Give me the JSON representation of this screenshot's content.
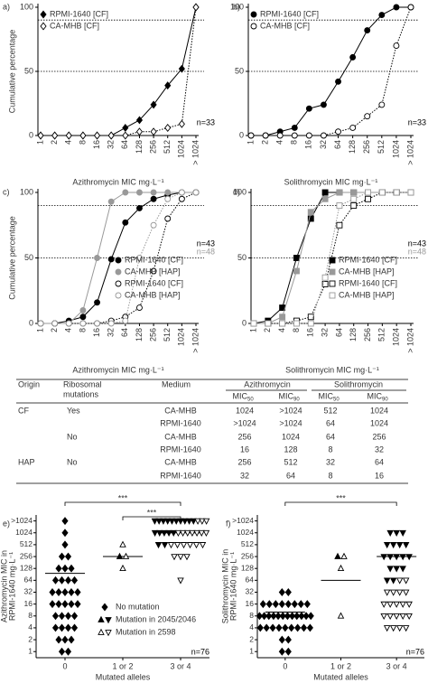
{
  "chart_data": [
    {
      "type": "line",
      "label": "a)",
      "marker": "diamond",
      "categories": [
        "1",
        "2",
        "4",
        "8",
        "16",
        "32",
        "64",
        "128",
        "256",
        "512",
        "1024",
        "> 1024"
      ],
      "ylim": [
        0,
        100
      ],
      "yticks": [
        0,
        50,
        100
      ],
      "reference_lines": [
        50,
        90
      ],
      "x_label": "Azithromycin MIC mg·L⁻¹",
      "y_label": "Cumulative percentage",
      "legend": "upper left",
      "annotations": [
        {
          "text": "n=33",
          "color": "#000000"
        }
      ],
      "series": [
        {
          "name": "RPMI-1640 [CF]",
          "color": "#000000",
          "filled": true,
          "dashed": false,
          "values": [
            0,
            0,
            0,
            0,
            0,
            0,
            6,
            12,
            24,
            39,
            52,
            100
          ]
        },
        {
          "name": "CA-MHB [CF]",
          "color": "#000000",
          "filled": false,
          "dashed": true,
          "values": [
            0,
            0,
            0,
            0,
            0,
            0,
            0,
            3,
            3,
            6,
            9,
            100
          ]
        }
      ]
    },
    {
      "type": "line",
      "label": "b)",
      "marker": "circle",
      "categories": [
        "1",
        "2",
        "4",
        "8",
        "16",
        "32",
        "64",
        "128",
        "256",
        "512",
        "1024",
        "> 1024"
      ],
      "ylim": [
        0,
        100
      ],
      "yticks": [
        0,
        50,
        100
      ],
      "reference_lines": [
        50,
        90
      ],
      "x_label": "Solithromycin MIC mg·L⁻¹",
      "legend": "upper left",
      "annotations": [
        {
          "text": "n=33",
          "color": "#000000"
        }
      ],
      "series": [
        {
          "name": "RPMI-1640 [CF]",
          "color": "#000000",
          "filled": true,
          "dashed": false,
          "values": [
            0,
            0,
            3,
            6,
            21,
            24,
            42,
            61,
            82,
            94,
            100,
            100
          ]
        },
        {
          "name": "CA-MHB [CF]",
          "color": "#000000",
          "filled": false,
          "dashed": true,
          "values": [
            0,
            0,
            0,
            0,
            0,
            0,
            3,
            6,
            15,
            24,
            70,
            100
          ]
        }
      ]
    },
    {
      "type": "line",
      "label": "c)",
      "marker": "circle",
      "categories": [
        "1",
        "2",
        "4",
        "8",
        "16",
        "32",
        "64",
        "128",
        "256",
        "512",
        "1024",
        "> 1024"
      ],
      "ylim": [
        0,
        100
      ],
      "yticks": [
        0,
        50,
        100
      ],
      "reference_lines": [
        50,
        90
      ],
      "x_label": "Azithromycin MIC mg·L⁻¹",
      "y_label": "Cumulative percentage",
      "legend": "lower right",
      "annotations": [
        {
          "text": "n=43",
          "color": "#000000"
        },
        {
          "text": "n=48",
          "color": "#999999"
        }
      ],
      "series": [
        {
          "name": "RPMI-1640 [CF]",
          "color": "#000000",
          "filled": true,
          "dashed": false,
          "values": [
            0,
            0,
            2,
            5,
            16,
            49,
            77,
            88,
            95,
            98,
            100,
            100
          ]
        },
        {
          "name": "CA-MHB [HAP]",
          "color": "#999999",
          "filled": true,
          "dashed": false,
          "values": [
            0,
            0,
            0,
            10,
            50,
            93,
            100,
            100,
            100,
            100,
            100,
            100
          ]
        },
        {
          "name": "RPMI-1640 [CF]",
          "color": "#000000",
          "filled": false,
          "dashed": true,
          "values": [
            0,
            0,
            0,
            0,
            0,
            2,
            5,
            12,
            40,
            80,
            95,
            100
          ]
        },
        {
          "name": "CA-MHB [HAP]",
          "color": "#999999",
          "filled": false,
          "dashed": true,
          "values": [
            0,
            0,
            0,
            0,
            0,
            0,
            2,
            50,
            75,
            95,
            100,
            100
          ]
        }
      ]
    },
    {
      "type": "line",
      "label": "d)",
      "marker": "square",
      "categories": [
        "1",
        "2",
        "4",
        "8",
        "16",
        "32",
        "64",
        "128",
        "256",
        "512",
        "1024",
        "> 1024"
      ],
      "ylim": [
        0,
        100
      ],
      "yticks": [
        0,
        50,
        100
      ],
      "reference_lines": [
        50,
        90
      ],
      "x_label": "Solithromycin MIC mg·L⁻¹",
      "legend": "lower right",
      "annotations": [
        {
          "text": "n=43",
          "color": "#000000"
        },
        {
          "text": "n=48",
          "color": "#999999"
        }
      ],
      "series": [
        {
          "name": "RPMI-1640 [CF]",
          "color": "#000000",
          "filled": true,
          "dashed": false,
          "values": [
            0,
            2,
            12,
            50,
            80,
            100,
            100,
            100,
            100,
            100,
            100,
            100
          ]
        },
        {
          "name": "CA-MHB [HAP]",
          "color": "#999999",
          "filled": true,
          "dashed": false,
          "values": [
            0,
            0,
            5,
            40,
            85,
            95,
            100,
            100,
            100,
            100,
            100,
            100
          ]
        },
        {
          "name": "RPMI-1640 [CF]",
          "color": "#000000",
          "filled": false,
          "dashed": true,
          "values": [
            0,
            0,
            0,
            2,
            5,
            30,
            75,
            90,
            95,
            100,
            100,
            100
          ]
        },
        {
          "name": "CA-MHB [HAP]",
          "color": "#999999",
          "filled": false,
          "dashed": true,
          "values": [
            0,
            0,
            0,
            0,
            0,
            35,
            90,
            95,
            100,
            100,
            100,
            100
          ]
        }
      ]
    },
    {
      "type": "dot",
      "label": "e)",
      "categories": [
        "0",
        "1 or 2",
        "3 or 4"
      ],
      "log_base": 2,
      "ylim": [
        0.7,
        2900
      ],
      "yticks": [
        1,
        2,
        4,
        8,
        16,
        32,
        64,
        128,
        256,
        512,
        1024,
        {
          "value": 2048,
          "label": ">1024"
        }
      ],
      "x_label": "Mutated alleles",
      "y_label": [
        "Azithromycin MIC in",
        "RPMI-1640 mg·L⁻¹"
      ],
      "legend": "lower left",
      "triangle_direction": [
        "down",
        "up",
        "down"
      ],
      "medians": [
        96,
        256,
        1024
      ],
      "brackets": [
        {
          "from": "0",
          "to": "3 or 4",
          "label": "***"
        },
        {
          "from": "1 or 2",
          "to": "3 or 4",
          "label": "***"
        }
      ],
      "annotations": [
        {
          "text": "n=76",
          "color": "#000000"
        }
      ],
      "series": [
        {
          "name": "No mutation",
          "marker": "diamond",
          "color": "#000000",
          "filled": true,
          "values": [
            [
              1,
              1,
              2,
              2,
              2,
              4,
              4,
              4,
              4,
              8,
              8,
              8,
              8,
              16,
              16,
              16,
              16,
              16,
              32,
              32,
              32,
              32,
              32,
              64,
              64,
              64,
              64,
              128,
              128,
              128,
              256,
              256,
              512,
              1024,
              2048
            ],
            [],
            []
          ]
        },
        {
          "name": "Mutation in 2045/2046",
          "marker": "triangle",
          "color": "#000000",
          "filled": true,
          "values": [
            [],
            [
              256
            ],
            [
              2048,
              2048,
              2048,
              2048,
              2048,
              2048,
              2048,
              2048,
              2048,
              2048,
              1024,
              1024,
              1024,
              1024,
              1024,
              512,
              512
            ]
          ]
        },
        {
          "name": "Mutation in 2598",
          "marker": "triangle",
          "color": "#000000",
          "filled": false,
          "values": [
            [],
            [
              512,
              256,
              128
            ],
            [
              2048,
              2048,
              2048,
              1024,
              1024,
              1024,
              1024,
              1024,
              1024,
              1024,
              512,
              512,
              512,
              512,
              512,
              512,
              256,
              256,
              256,
              64
            ]
          ]
        }
      ]
    },
    {
      "type": "dot",
      "label": "f)",
      "categories": [
        "0",
        "1 or 2",
        "3 or 4"
      ],
      "log_base": 2,
      "ylim": [
        0.7,
        2900
      ],
      "yticks": [
        1,
        2,
        4,
        8,
        16,
        32,
        64,
        128,
        256,
        512,
        1024,
        {
          "value": 2048,
          "label": ">1024"
        }
      ],
      "x_label": "Mutated alleles",
      "y_label": [
        "Solithromycin MIC in",
        "RPMI-1640 mg·L⁻¹"
      ],
      "triangle_direction": [
        "down",
        "up",
        "down"
      ],
      "medians": [
        10,
        64,
        256
      ],
      "brackets": [
        {
          "from": "0",
          "to": "3 or 4",
          "label": "***"
        }
      ],
      "annotations": [
        {
          "text": "n=76",
          "color": "#000000"
        }
      ],
      "series": [
        {
          "marker": "diamond",
          "color": "#000000",
          "filled": true,
          "values": [
            [
              1,
              1,
              2,
              2,
              4,
              4,
              4,
              4,
              4,
              4,
              4,
              4,
              4,
              8,
              8,
              8,
              8,
              8,
              8,
              8,
              8,
              8,
              8,
              8,
              8,
              16,
              16,
              16,
              16,
              16,
              16,
              16,
              16,
              32,
              32
            ],
            [],
            []
          ]
        },
        {
          "marker": "triangle",
          "color": "#000000",
          "filled": true,
          "values": [
            [],
            [
              256
            ],
            [
              1024,
              1024,
              1024,
              512,
              512,
              512,
              512,
              256,
              256,
              256,
              256,
              256,
              128,
              128,
              128,
              64,
              64
            ]
          ]
        },
        {
          "marker": "triangle",
          "color": "#000000",
          "filled": false,
          "values": [
            [],
            [
              256,
              128,
              8
            ],
            [
              64,
              64,
              32,
              32,
              32,
              32,
              16,
              16,
              16,
              16,
              16,
              8,
              8,
              8,
              8,
              8,
              4,
              4,
              4,
              4
            ]
          ]
        }
      ]
    }
  ],
  "table": {
    "header": {
      "origin": "Origin",
      "mutations": [
        "Ribosomal",
        "mutations"
      ],
      "medium": "Medium",
      "drugs": [
        "Azithromycin",
        "Solithromycin"
      ],
      "mic": [
        {
          "text": "MIC",
          "sub": "50"
        },
        {
          "text": "MIC",
          "sub": "90"
        },
        {
          "text": "MIC",
          "sub": "50"
        },
        {
          "text": "MIC",
          "sub": "90"
        }
      ]
    },
    "rows": [
      [
        "CF",
        "Yes",
        "CA-MHB",
        "1024",
        ">1024",
        "512",
        "1024"
      ],
      [
        null,
        null,
        "RPMI-1640",
        ">1024",
        ">1024",
        "64",
        "1024"
      ],
      [
        null,
        "No",
        "CA-MHB",
        "256",
        "1024",
        "64",
        "256"
      ],
      [
        null,
        null,
        "RPMI-1640",
        "16",
        "128",
        "8",
        "32"
      ],
      [
        "HAP",
        "No",
        "CA-MHB",
        "256",
        "512",
        "32",
        "64"
      ],
      [
        null,
        null,
        "RPMI-1640",
        "32",
        "64",
        "8",
        "16"
      ]
    ]
  }
}
